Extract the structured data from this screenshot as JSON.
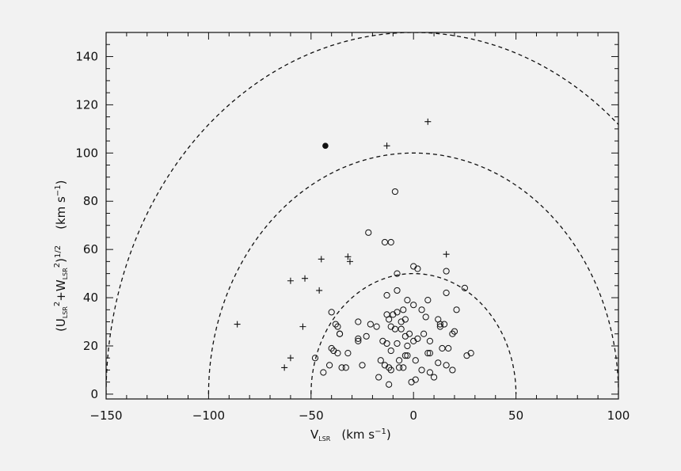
{
  "chart_data": {
    "type": "scatter",
    "xlabel": {
      "main": "V",
      "sub": "LSR",
      "unit": "(km s",
      "exp": "−1",
      "close": ")"
    },
    "ylabel": {
      "open": "(U",
      "sub1": "LSR",
      "sq1": "2",
      "plus": "+W",
      "sub2": "LSR",
      "sq2": "2",
      "close": ")",
      "pow": "1/2",
      "unit": "(km s",
      "exp": "−1",
      "close2": ")"
    },
    "xlim": [
      -150,
      100
    ],
    "ylim": [
      -2,
      150
    ],
    "x_ticks": [
      "−150",
      "−100",
      "−50",
      "0",
      "50",
      "100"
    ],
    "y_ticks": [
      "0",
      "20",
      "40",
      "60",
      "80",
      "100",
      "120",
      "140"
    ],
    "grid": false,
    "reference_curves": [
      {
        "style": "dashed",
        "center_x": 0,
        "radius": 50
      },
      {
        "style": "dashed",
        "center_x": 0,
        "radius": 100
      },
      {
        "style": "dashed",
        "center_x": 0,
        "radius": 150
      }
    ],
    "series": [
      {
        "marker": "open-circle",
        "points": [
          [
            -9,
            84
          ],
          [
            -22,
            67
          ],
          [
            -14,
            63
          ],
          [
            -11,
            63
          ],
          [
            0,
            53
          ],
          [
            2,
            52
          ],
          [
            -8,
            50
          ],
          [
            16,
            51
          ],
          [
            -8,
            43
          ],
          [
            25,
            44
          ],
          [
            -3,
            39
          ],
          [
            16,
            42
          ],
          [
            -13,
            41
          ],
          [
            7,
            39
          ],
          [
            -40,
            34
          ],
          [
            -13,
            33
          ],
          [
            0,
            37
          ],
          [
            -5,
            35
          ],
          [
            -8,
            34
          ],
          [
            -10,
            33
          ],
          [
            -6,
            30
          ],
          [
            4,
            35
          ],
          [
            6,
            32
          ],
          [
            -27,
            30
          ],
          [
            -21,
            29
          ],
          [
            -38,
            29
          ],
          [
            -12,
            31
          ],
          [
            -4,
            31
          ],
          [
            -9,
            27
          ],
          [
            -6,
            27
          ],
          [
            -11,
            28
          ],
          [
            -18,
            28
          ],
          [
            -23,
            24
          ],
          [
            -27,
            23
          ],
          [
            -27,
            22
          ],
          [
            -36,
            25
          ],
          [
            -4,
            24
          ],
          [
            -2,
            25
          ],
          [
            5,
            25
          ],
          [
            13,
            28
          ],
          [
            13,
            29
          ],
          [
            15,
            29
          ],
          [
            19,
            25
          ],
          [
            20,
            26
          ],
          [
            21,
            35
          ],
          [
            12,
            31
          ],
          [
            8,
            22
          ],
          [
            -15,
            22
          ],
          [
            -13,
            21
          ],
          [
            -8,
            21
          ],
          [
            -3,
            20
          ],
          [
            0,
            22
          ],
          [
            2,
            23
          ],
          [
            -40,
            19
          ],
          [
            -37,
            17
          ],
          [
            -32,
            17
          ],
          [
            -48,
            15
          ],
          [
            -11,
            18
          ],
          [
            -4,
            16
          ],
          [
            -3,
            16
          ],
          [
            7,
            17
          ],
          [
            8,
            17
          ],
          [
            14,
            19
          ],
          [
            17,
            19
          ],
          [
            26,
            16
          ],
          [
            28,
            17
          ],
          [
            -16,
            14
          ],
          [
            -7,
            14
          ],
          [
            1,
            14
          ],
          [
            12,
            13
          ],
          [
            16,
            12
          ],
          [
            19,
            10
          ],
          [
            -41,
            12
          ],
          [
            -44,
            9
          ],
          [
            -35,
            11
          ],
          [
            -33,
            11
          ],
          [
            -25,
            12
          ],
          [
            -14,
            12
          ],
          [
            -12,
            11
          ],
          [
            -11,
            10
          ],
          [
            -7,
            11
          ],
          [
            -5,
            11
          ],
          [
            4,
            10
          ],
          [
            8,
            9
          ],
          [
            -17,
            7
          ],
          [
            -12,
            4
          ],
          [
            -1,
            5
          ],
          [
            1,
            6
          ],
          [
            10,
            7
          ],
          [
            -36,
            25
          ],
          [
            -37,
            28
          ],
          [
            -39,
            18
          ]
        ]
      },
      {
        "marker": "plus",
        "points": [
          [
            7,
            113
          ],
          [
            -13,
            103
          ],
          [
            -45,
            56
          ],
          [
            -32,
            57
          ],
          [
            -31,
            55
          ],
          [
            16,
            58
          ],
          [
            -60,
            47
          ],
          [
            -53,
            48
          ],
          [
            -46,
            43
          ],
          [
            -86,
            29
          ],
          [
            -54,
            28
          ],
          [
            -60,
            15
          ],
          [
            -63,
            11
          ]
        ]
      },
      {
        "marker": "filled-circle",
        "points": [
          [
            -43,
            103
          ]
        ]
      }
    ]
  }
}
